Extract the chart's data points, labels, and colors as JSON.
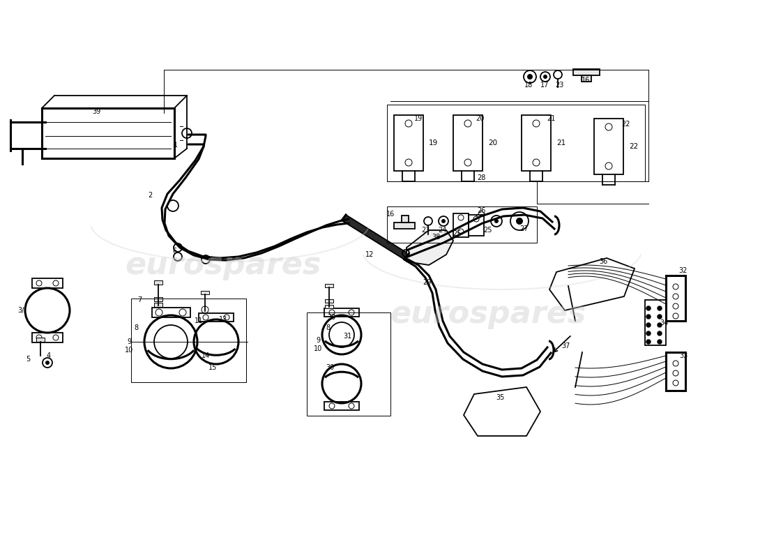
{
  "bg_color": "#ffffff",
  "line_color": "#000000",
  "figw": 11.0,
  "figh": 8.0,
  "xlim": [
    0,
    11
  ],
  "ylim": [
    0,
    8
  ]
}
